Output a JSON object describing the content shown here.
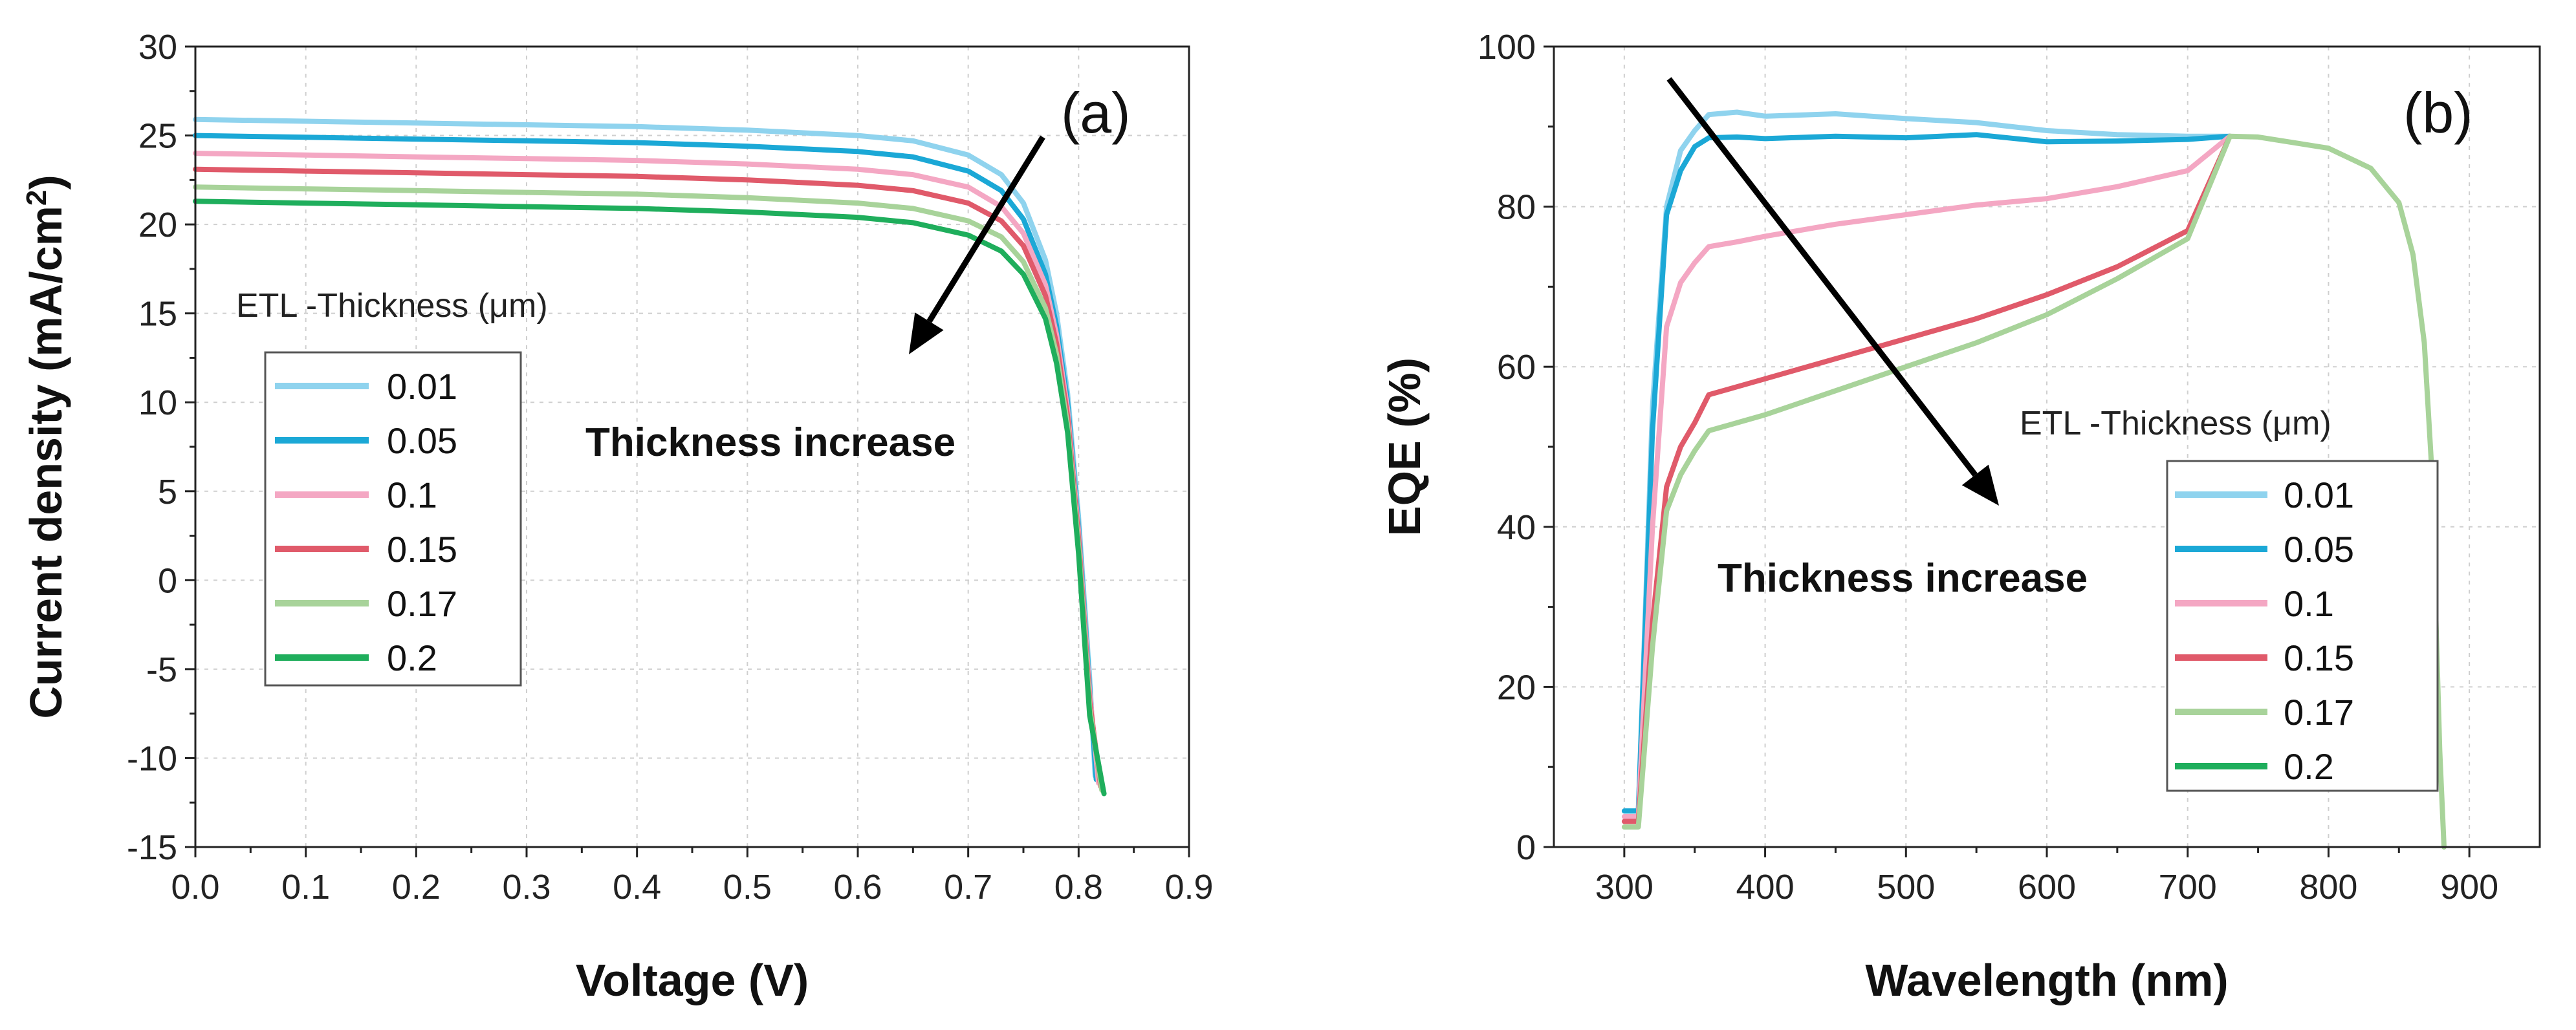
{
  "chart_data": [
    {
      "id": "a",
      "type": "line",
      "panel_label": "(a)",
      "title": "",
      "xlabel": "Voltage (V)",
      "ylabel_main": "Current density (mA/cm",
      "ylabel_sup": "2",
      "ylabel_end": ")",
      "xlim": [
        0.0,
        0.9
      ],
      "ylim": [
        -15,
        30
      ],
      "xticks": [
        0.0,
        0.1,
        0.2,
        0.3,
        0.4,
        0.5,
        0.6,
        0.7,
        0.8,
        0.9
      ],
      "xtick_labels": [
        "0.0",
        "0.1",
        "0.2",
        "0.3",
        "0.4",
        "0.5",
        "0.6",
        "0.7",
        "0.8",
        "0.9"
      ],
      "yticks": [
        -15,
        -10,
        -5,
        0,
        5,
        10,
        15,
        20,
        25,
        30
      ],
      "ytick_labels": [
        "-15",
        "-10",
        "-5",
        "0",
        "5",
        "10",
        "15",
        "20",
        "25",
        "30"
      ],
      "grid": true,
      "legend_title": "ETL -Thickness (μm)",
      "legend_position": "middle-left",
      "annotation": "Thickness increase",
      "series": [
        {
          "name": "0.01",
          "color": "#8fd3ee",
          "x": [
            0,
            0.1,
            0.2,
            0.3,
            0.4,
            0.5,
            0.6,
            0.65,
            0.7,
            0.73,
            0.75,
            0.77,
            0.78,
            0.79,
            0.8,
            0.81,
            0.815
          ],
          "y": [
            25.9,
            25.8,
            25.7,
            25.6,
            25.5,
            25.3,
            25.0,
            24.7,
            23.9,
            22.8,
            21.2,
            18.0,
            15.0,
            10.5,
            3.5,
            -5.5,
            -11.0
          ]
        },
        {
          "name": "0.05",
          "color": "#1ba8d6",
          "x": [
            0,
            0.1,
            0.2,
            0.3,
            0.4,
            0.5,
            0.6,
            0.65,
            0.7,
            0.73,
            0.75,
            0.77,
            0.78,
            0.79,
            0.8,
            0.81,
            0.816
          ],
          "y": [
            25.0,
            24.9,
            24.8,
            24.7,
            24.6,
            24.4,
            24.1,
            23.8,
            23.0,
            21.9,
            20.3,
            17.2,
            14.3,
            10.0,
            3.0,
            -6.0,
            -11.2
          ]
        },
        {
          "name": "0.1",
          "color": "#f4a7c3",
          "x": [
            0,
            0.1,
            0.2,
            0.3,
            0.4,
            0.5,
            0.6,
            0.65,
            0.7,
            0.73,
            0.75,
            0.77,
            0.78,
            0.79,
            0.8,
            0.81,
            0.818
          ],
          "y": [
            24.0,
            23.9,
            23.8,
            23.7,
            23.6,
            23.4,
            23.1,
            22.8,
            22.1,
            21.0,
            19.5,
            16.6,
            13.8,
            9.6,
            2.7,
            -6.3,
            -11.4
          ]
        },
        {
          "name": "0.15",
          "color": "#e05a6a",
          "x": [
            0,
            0.1,
            0.2,
            0.3,
            0.4,
            0.5,
            0.6,
            0.65,
            0.7,
            0.73,
            0.75,
            0.77,
            0.78,
            0.79,
            0.8,
            0.81,
            0.82
          ],
          "y": [
            23.1,
            23.0,
            22.9,
            22.8,
            22.7,
            22.5,
            22.2,
            21.9,
            21.2,
            20.2,
            18.8,
            16.0,
            13.3,
            9.2,
            2.3,
            -6.8,
            -11.6
          ]
        },
        {
          "name": "0.17",
          "color": "#a8d39a",
          "x": [
            0,
            0.1,
            0.2,
            0.3,
            0.4,
            0.5,
            0.6,
            0.65,
            0.7,
            0.73,
            0.75,
            0.77,
            0.78,
            0.79,
            0.8,
            0.81,
            0.821
          ],
          "y": [
            22.1,
            22.0,
            21.9,
            21.8,
            21.7,
            21.5,
            21.2,
            20.9,
            20.2,
            19.3,
            17.9,
            15.3,
            12.7,
            8.7,
            1.9,
            -7.2,
            -11.8
          ]
        },
        {
          "name": "0.2",
          "color": "#1fae5c",
          "x": [
            0,
            0.1,
            0.2,
            0.3,
            0.4,
            0.5,
            0.6,
            0.65,
            0.7,
            0.73,
            0.75,
            0.77,
            0.78,
            0.79,
            0.8,
            0.81,
            0.823
          ],
          "y": [
            21.3,
            21.2,
            21.1,
            21.0,
            20.9,
            20.7,
            20.4,
            20.1,
            19.4,
            18.5,
            17.2,
            14.7,
            12.2,
            8.3,
            1.5,
            -7.6,
            -12.0
          ]
        }
      ]
    },
    {
      "id": "b",
      "type": "line",
      "panel_label": "(b)",
      "title": "",
      "xlabel": "Wavelength (nm)",
      "ylabel_main": "EQE (%)",
      "ylabel_sup": "",
      "ylabel_end": "",
      "xlim": [
        250,
        950
      ],
      "ylim": [
        0,
        100
      ],
      "xticks": [
        300,
        400,
        500,
        600,
        700,
        800,
        900
      ],
      "xtick_labels": [
        "300",
        "400",
        "500",
        "600",
        "700",
        "800",
        "900"
      ],
      "yticks": [
        0,
        20,
        40,
        60,
        80,
        100
      ],
      "ytick_labels": [
        "0",
        "20",
        "40",
        "60",
        "80",
        "100"
      ],
      "grid": true,
      "legend_title": "ETL -Thickness (μm)",
      "legend_position": "bottom-right",
      "annotation": "Thickness increase",
      "series": [
        {
          "name": "0.01",
          "color": "#8fd3ee",
          "x": [
            300,
            310,
            320,
            330,
            340,
            350,
            360,
            380,
            400,
            450,
            500,
            550,
            600,
            650,
            700,
            730
          ],
          "y": [
            4.5,
            4.5,
            55,
            80,
            87,
            89.5,
            91.5,
            91.8,
            91.3,
            91.6,
            91.0,
            90.5,
            89.5,
            89.0,
            88.8,
            88.8
          ]
        },
        {
          "name": "0.05",
          "color": "#1ba8d6",
          "x": [
            300,
            310,
            320,
            330,
            340,
            350,
            360,
            380,
            400,
            450,
            500,
            550,
            600,
            650,
            700,
            730
          ],
          "y": [
            4.5,
            4.5,
            52,
            79,
            84.5,
            87.5,
            88.6,
            88.7,
            88.5,
            88.8,
            88.6,
            89.0,
            88.1,
            88.2,
            88.4,
            88.8
          ]
        },
        {
          "name": "0.1",
          "color": "#f4a7c3",
          "x": [
            300,
            310,
            320,
            330,
            340,
            350,
            360,
            380,
            400,
            450,
            500,
            550,
            600,
            650,
            700,
            730
          ],
          "y": [
            3.8,
            3.8,
            40,
            65,
            70.5,
            73,
            75,
            75.6,
            76.3,
            77.8,
            79.0,
            80.2,
            81.0,
            82.5,
            84.5,
            88.8
          ]
        },
        {
          "name": "0.15",
          "color": "#e05a6a",
          "x": [
            300,
            310,
            320,
            330,
            340,
            350,
            360,
            380,
            400,
            450,
            500,
            550,
            600,
            650,
            700,
            730
          ],
          "y": [
            3.2,
            3.2,
            28,
            45,
            50,
            53,
            56.5,
            57.5,
            58.5,
            61,
            63.5,
            66,
            69,
            72.5,
            77,
            88.8
          ]
        },
        {
          "name": "0.17",
          "color": "#a8d39a",
          "x": [
            300,
            310,
            320,
            330,
            340,
            350,
            360,
            380,
            400,
            450,
            500,
            550,
            600,
            650,
            700,
            730,
            750,
            800,
            830,
            850,
            860,
            868,
            873,
            876,
            879,
            882
          ],
          "y": [
            2.5,
            2.5,
            25,
            42,
            46.5,
            49.5,
            52,
            53,
            54,
            57,
            60,
            63,
            66.5,
            71,
            76,
            88.8,
            88.7,
            87.3,
            84.8,
            80.5,
            74,
            63,
            48,
            30,
            12,
            0
          ]
        },
        {
          "name": "0.2",
          "color": "#1fae5c",
          "x": [],
          "y": []
        }
      ]
    }
  ]
}
